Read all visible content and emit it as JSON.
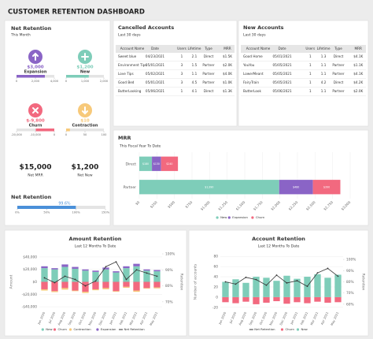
{
  "header": {
    "title": "CUSTOMER RETENTION DASHBOARD"
  },
  "kpi_panel": {
    "title": "Net Retention",
    "subtitle": "This Month",
    "kpis": [
      {
        "label": "Expansion",
        "value": 3000,
        "value_label": "$3,000",
        "color": "#8a64c6",
        "xlim": [
          0,
          4000
        ],
        "xticks": [
          0,
          {
            "value": 2000,
            "label": "2,000"
          },
          {
            "value": 4000,
            "label": "4,000"
          }
        ]
      },
      {
        "label": "New",
        "value": 1200,
        "value_label": "$1,200",
        "color": "#7ecdb9",
        "xlim": [
          0,
          2000
        ],
        "xticks": [
          0,
          {
            "value": 1000,
            "label": "1,000"
          },
          {
            "value": 2000,
            "label": "2,000"
          }
        ]
      },
      {
        "label": "Churn",
        "value": -9800,
        "value_label": "$-9,800",
        "color": "#f2697f",
        "xlim": [
          -20000,
          0
        ],
        "xticks": [
          {
            "value": -20000,
            "label": "-20,000"
          },
          {
            "value": -10000,
            "label": "-10,000"
          },
          0
        ]
      },
      {
        "label": "Contraction",
        "value": 10,
        "value_label": "$10",
        "color": "#f7c97a",
        "xlim": [
          0,
          100
        ],
        "xticks": [
          0,
          50,
          100
        ]
      }
    ],
    "summary": [
      {
        "value": "$15,000",
        "label": "Net MRR"
      },
      {
        "value": "$1,200",
        "label": "Net New"
      }
    ],
    "net_retention": {
      "title": "Net Retention",
      "value": 99.6,
      "value_label": "99.6%",
      "color": "#4a90d9",
      "xlim": [
        0,
        150
      ],
      "xticks": [
        {
          "value": 0,
          "label": "0%"
        },
        {
          "value": 50,
          "label": "50%"
        },
        {
          "value": 100,
          "label": "100%"
        },
        {
          "value": 150,
          "label": "150%"
        }
      ]
    }
  },
  "tables": [
    {
      "title": "Cancelled Accounts",
      "subtitle": "Last 30 days",
      "columns": [
        "Account Name",
        "Date",
        "Users",
        "Lifetime",
        "Type",
        "MRR"
      ],
      "rows": [
        [
          "Sweet blue",
          "04/23/2021",
          1,
          2.1,
          "Direct",
          "$1.5K"
        ],
        [
          "Environment Tips",
          "05/01/2021",
          3,
          1.5,
          "Partner",
          "$2.0K"
        ],
        [
          "Love Tips",
          "05/02/2021",
          3,
          1.1,
          "Partner",
          "$4.0K"
        ],
        [
          "Good Bed",
          "05/01/2021",
          3,
          4.5,
          "Partner",
          "$1.0K"
        ],
        [
          "ButterLooking",
          "05/06/2021",
          1,
          4.1,
          "Direct",
          "$1.3K"
        ]
      ]
    },
    {
      "title": "New Accounts",
      "subtitle": "Last 30 days",
      "columns": [
        "Account Name",
        "Date",
        "Users",
        "Lifetime",
        "Type",
        "MRR"
      ],
      "rows": [
        [
          "Good Home",
          "05/01/2021",
          1,
          1.3,
          "Direct",
          "$4.1K"
        ],
        [
          "YouYou",
          "05/05/2021",
          1,
          1.1,
          "Partner",
          "$1.1K"
        ],
        [
          "LowerMeant",
          "05/05/2021",
          1,
          1.1,
          "Partner",
          "$4.1K"
        ],
        [
          "FairyTrain",
          "05/05/2021",
          1,
          4.2,
          "Direct",
          "$4.2K"
        ],
        [
          "ButterLook",
          "05/06/2021",
          1,
          1.1,
          "Partner",
          "$2.0K"
        ]
      ]
    }
  ],
  "chart_data": [
    {
      "type": "barh",
      "title": "MRR",
      "subtitle": "This Fiscal Year To Date",
      "categories": [
        "Direct",
        "Partner"
      ],
      "series": [
        {
          "name": "New",
          "color": "#7ecdb9",
          "values": [
            180,
            1990
          ],
          "value_labels": [
            "$180",
            "$1,990"
          ]
        },
        {
          "name": "Expansion",
          "color": "#8a64c6",
          "values": [
            130,
            480
          ],
          "value_labels": [
            "$130",
            "$480"
          ]
        },
        {
          "name": "Churn",
          "color": "#f2697f",
          "values": [
            240,
            390
          ],
          "value_labels": [
            "$240",
            "$390"
          ]
        }
      ],
      "xlim": [
        0,
        3000
      ],
      "xticks": [
        {
          "value": 0,
          "label": "$0"
        },
        {
          "value": 250,
          "label": "$250"
        },
        {
          "value": 500,
          "label": "$500"
        },
        {
          "value": 750,
          "label": "$750"
        },
        {
          "value": 1000,
          "label": "$1,000"
        },
        {
          "value": 1250,
          "label": "$1,250"
        },
        {
          "value": 1500,
          "label": "$1,500"
        },
        {
          "value": 1750,
          "label": "$1,750"
        },
        {
          "value": 2000,
          "label": "$2,000"
        },
        {
          "value": 2250,
          "label": "$2,250"
        },
        {
          "value": 2500,
          "label": "$2,500"
        },
        {
          "value": 2750,
          "label": "$2,750"
        },
        {
          "value": 3000,
          "label": "$3,000"
        }
      ],
      "grid": true
    },
    {
      "type": "combo",
      "title": "Amount Retention",
      "subtitle": "Last 12 Months To Date",
      "y_label": "Amount",
      "y2_label": "Retention",
      "categories": [
        "Jun 2020",
        "Jul 2020",
        "Aug 2020",
        "Sep 2020",
        "Oct 2020",
        "Nov 2020",
        "Dec 2020",
        "Jan 2021",
        "Feb 2021",
        "Mar 2021",
        "Apr 2021",
        "May 2021"
      ],
      "series": [
        {
          "name": "New",
          "type": "bar",
          "color": "#7ecdb9",
          "values": [
            22000,
            20000,
            24000,
            21000,
            18000,
            16000,
            20000,
            15000,
            22000,
            25000,
            18000,
            17000
          ]
        },
        {
          "name": "Churn",
          "type": "bar",
          "color": "#f2697f",
          "values": [
            -12000,
            -15000,
            -10000,
            -14000,
            -16000,
            -12000,
            -10000,
            -15000,
            -8000,
            -14000,
            -10000,
            -9000
          ]
        },
        {
          "name": "Contraction",
          "type": "bar",
          "color": "#f7c97a",
          "values": [
            -2000,
            -1500,
            -2500,
            -1000,
            -2000,
            -1500,
            -2000,
            -1000,
            -1500,
            -2000,
            -1000,
            -1500
          ]
        },
        {
          "name": "Expansion",
          "type": "bar",
          "color": "#8a64c6",
          "values": [
            3000,
            2000,
            4000,
            3000,
            2000,
            2000,
            3000,
            2000,
            3000,
            4000,
            2000,
            2000
          ]
        },
        {
          "name": "Net Retention",
          "type": "line",
          "axis": "y2",
          "color": "#333333",
          "values": [
            85,
            82,
            86,
            84,
            80,
            83,
            92,
            95,
            84,
            90,
            88,
            86
          ]
        }
      ],
      "ylim": [
        -45000,
        45000
      ],
      "yticks": [
        {
          "value": -40000,
          "label": "-$40,000"
        },
        {
          "value": -20000,
          "label": "-$20,000"
        },
        {
          "value": 0,
          "label": "$0"
        },
        {
          "value": 20000,
          "label": "$20,000"
        },
        {
          "value": 40000,
          "label": "$40,000"
        }
      ],
      "y2lim": [
        65,
        100
      ],
      "y2ticks": [
        {
          "value": 70,
          "label": "70%"
        },
        {
          "value": 80,
          "label": "80%"
        },
        {
          "value": 90,
          "label": "90%"
        },
        {
          "value": 100,
          "label": "100%"
        }
      ],
      "grid": true
    },
    {
      "type": "combo",
      "title": "Account Retention",
      "subtitle": "Last 12 Months To Date",
      "y_label": "Number of accounts",
      "y2_label": "Retention",
      "categories": [
        "Jun 2020",
        "Jul 2020",
        "Aug 2020",
        "Sep 2020",
        "Oct 2020",
        "Nov 2020",
        "Dec 2020",
        "Jan 2021",
        "Feb 2021",
        "Mar 2021",
        "Apr 2021",
        "May 2021"
      ],
      "series": [
        {
          "name": "Net Retention",
          "type": "line",
          "axis": "y2",
          "color": "#333333",
          "values": [
            80,
            78,
            84,
            82,
            77,
            86,
            79,
            81,
            76,
            88,
            92,
            85
          ]
        },
        {
          "name": "Churn",
          "type": "bar",
          "color": "#f2697f",
          "values": [
            -10,
            -12,
            -9,
            -14,
            -11,
            -8,
            -13,
            -10,
            -12,
            -9,
            -11,
            -10
          ]
        },
        {
          "name": "New",
          "type": "bar",
          "color": "#7ecdb9",
          "values": [
            30,
            35,
            28,
            40,
            38,
            32,
            42,
            36,
            40,
            45,
            38,
            44
          ]
        }
      ],
      "ylim": [
        -25,
        85
      ],
      "yticks": [
        -20,
        0,
        20,
        40,
        60,
        80
      ],
      "y2lim": [
        55,
        105
      ],
      "y2ticks": [
        {
          "value": 60,
          "label": "60%"
        },
        {
          "value": 70,
          "label": "70%"
        },
        {
          "value": 80,
          "label": "80%"
        },
        {
          "value": 90,
          "label": "90%"
        },
        {
          "value": 100,
          "label": "100%"
        }
      ],
      "grid": true
    }
  ]
}
